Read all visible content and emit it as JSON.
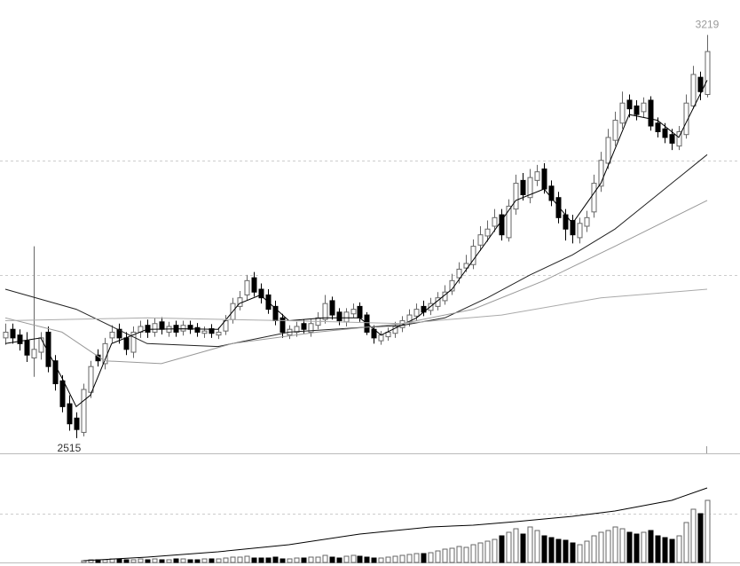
{
  "chart_data": {
    "type": "candlestick",
    "open": [
      2690,
      2705,
      2695,
      2685,
      2655,
      2665,
      2700,
      2650,
      2615,
      2575,
      2550,
      2525,
      2595,
      2660,
      2645,
      2690,
      2705,
      2690,
      2665,
      2700,
      2712,
      2700,
      2718,
      2700,
      2712,
      2702,
      2712,
      2708,
      2698,
      2706,
      2695,
      2702,
      2722,
      2745,
      2765,
      2795,
      2775,
      2765,
      2745,
      2725,
      2695,
      2700,
      2715,
      2700,
      2712,
      2722,
      2755,
      2735,
      2718,
      2732,
      2745,
      2730,
      2705,
      2685,
      2692,
      2698,
      2708,
      2718,
      2728,
      2745,
      2738,
      2745,
      2755,
      2772,
      2795,
      2812,
      2818,
      2852,
      2868,
      2885,
      2905,
      2865,
      2915,
      2965,
      2935,
      2965,
      2985,
      2955,
      2935,
      2905,
      2895,
      2865,
      2885,
      2910,
      2955,
      2995,
      3035,
      3065,
      3105,
      3095,
      3085,
      3105,
      3065,
      3055,
      3045,
      3025,
      3045,
      3095,
      3145,
      3115
    ],
    "high": [
      2715,
      2715,
      2705,
      2700,
      2850,
      2700,
      2710,
      2660,
      2625,
      2590,
      2560,
      2610,
      2650,
      2670,
      2690,
      2712,
      2715,
      2700,
      2710,
      2720,
      2722,
      2725,
      2726,
      2718,
      2720,
      2720,
      2720,
      2716,
      2710,
      2714,
      2708,
      2730,
      2760,
      2772,
      2800,
      2805,
      2785,
      2775,
      2755,
      2732,
      2712,
      2718,
      2722,
      2722,
      2735,
      2765,
      2762,
      2742,
      2742,
      2750,
      2752,
      2735,
      2712,
      2702,
      2708,
      2718,
      2728,
      2740,
      2750,
      2755,
      2760,
      2770,
      2782,
      2802,
      2822,
      2835,
      2862,
      2885,
      2895,
      2915,
      2915,
      2932,
      2975,
      2978,
      2985,
      2992,
      2995,
      2965,
      2945,
      2915,
      2905,
      2900,
      2912,
      2975,
      3015,
      3055,
      3085,
      3120,
      3115,
      3105,
      3110,
      3112,
      3075,
      3065,
      3055,
      3060,
      3115,
      3165,
      3155,
      3219
    ],
    "low": [
      2678,
      2680,
      2668,
      2648,
      2622,
      2652,
      2630,
      2598,
      2560,
      2528,
      2515,
      2518,
      2585,
      2640,
      2635,
      2680,
      2680,
      2660,
      2655,
      2690,
      2690,
      2692,
      2696,
      2692,
      2692,
      2694,
      2697,
      2692,
      2690,
      2690,
      2688,
      2695,
      2715,
      2738,
      2755,
      2762,
      2750,
      2732,
      2712,
      2690,
      2688,
      2692,
      2698,
      2692,
      2705,
      2715,
      2722,
      2712,
      2710,
      2725,
      2718,
      2695,
      2680,
      2678,
      2685,
      2690,
      2700,
      2710,
      2720,
      2728,
      2730,
      2738,
      2748,
      2765,
      2785,
      2805,
      2810,
      2842,
      2858,
      2875,
      2860,
      2858,
      2905,
      2930,
      2925,
      2955,
      2942,
      2920,
      2890,
      2860,
      2855,
      2855,
      2875,
      2900,
      2945,
      2985,
      3025,
      3055,
      3075,
      3070,
      3075,
      3052,
      3040,
      3030,
      3018,
      3018,
      3038,
      3090,
      3105,
      3110
    ],
    "close": [
      2700,
      2690,
      2680,
      2660,
      2670,
      2690,
      2640,
      2610,
      2570,
      2540,
      2530,
      2600,
      2640,
      2650,
      2680,
      2700,
      2690,
      2670,
      2700,
      2710,
      2700,
      2715,
      2705,
      2710,
      2700,
      2712,
      2705,
      2700,
      2702,
      2698,
      2700,
      2720,
      2750,
      2760,
      2790,
      2770,
      2760,
      2740,
      2720,
      2700,
      2705,
      2710,
      2705,
      2715,
      2725,
      2750,
      2730,
      2720,
      2735,
      2740,
      2725,
      2700,
      2690,
      2695,
      2700,
      2710,
      2720,
      2730,
      2740,
      2735,
      2750,
      2760,
      2770,
      2790,
      2810,
      2820,
      2850,
      2870,
      2880,
      2900,
      2870,
      2920,
      2960,
      2940,
      2970,
      2980,
      2950,
      2930,
      2900,
      2880,
      2870,
      2890,
      2900,
      2960,
      3000,
      3040,
      3070,
      3100,
      3090,
      3080,
      3100,
      3060,
      3050,
      3040,
      3030,
      3050,
      3100,
      3150,
      3120,
      3190
    ],
    "xlim": [
      0,
      99
    ],
    "ylim": [
      2490,
      3280
    ],
    "yticks": [
      2800,
      3000
    ],
    "grid": true,
    "up_color": "#ffffff",
    "down_color": "#000000",
    "wick_color": "#666666",
    "lines": [
      {
        "color": "#000000",
        "x": [
          0,
          5,
          8,
          10,
          12,
          15,
          20,
          25,
          30,
          33,
          36,
          40,
          45,
          50,
          53,
          58,
          63,
          68,
          72,
          76,
          80,
          84,
          88,
          92,
          95,
          99
        ],
        "values": [
          2680,
          2690,
          2620,
          2570,
          2590,
          2680,
          2705,
          2706,
          2705,
          2750,
          2765,
          2720,
          2725,
          2725,
          2695,
          2725,
          2775,
          2860,
          2930,
          2950,
          2890,
          2960,
          3080,
          3070,
          3040,
          3140
        ]
      },
      {
        "color": "#222222",
        "x": [
          0,
          10,
          20,
          30,
          40,
          50,
          56,
          62,
          68,
          74,
          80,
          86,
          92,
          99
        ],
        "values": [
          2775,
          2740,
          2680,
          2675,
          2700,
          2708,
          2712,
          2725,
          2760,
          2800,
          2835,
          2880,
          2940,
          3010
        ]
      },
      {
        "color": "#999999",
        "x": [
          0,
          8,
          14,
          22,
          32,
          44,
          56,
          66,
          76,
          86,
          99
        ],
        "values": [
          2725,
          2700,
          2650,
          2645,
          2680,
          2700,
          2715,
          2740,
          2790,
          2850,
          2930
        ]
      },
      {
        "color": "#aaaaaa",
        "x": [
          0,
          20,
          40,
          56,
          70,
          84,
          99
        ],
        "values": [
          2720,
          2725,
          2720,
          2715,
          2730,
          2760,
          2775
        ]
      }
    ],
    "volume": {
      "values": [
        null,
        null,
        null,
        null,
        null,
        null,
        null,
        null,
        null,
        null,
        null,
        2,
        3,
        3,
        3,
        4,
        4,
        3,
        3,
        4,
        3,
        4,
        3,
        3,
        4,
        4,
        3,
        3,
        4,
        4,
        4,
        5,
        6,
        6,
        7,
        5,
        5,
        5,
        6,
        4,
        4,
        5,
        5,
        6,
        6,
        8,
        6,
        5,
        7,
        8,
        7,
        6,
        5,
        5,
        6,
        7,
        8,
        9,
        10,
        10,
        11,
        13,
        15,
        16,
        18,
        17,
        20,
        22,
        24,
        26,
        30,
        34,
        38,
        32,
        40,
        36,
        30,
        28,
        26,
        25,
        22,
        20,
        24,
        30,
        34,
        36,
        40,
        38,
        34,
        32,
        34,
        36,
        30,
        28,
        26,
        30,
        45,
        60,
        55,
        70
      ],
      "ylim": [
        0,
        120
      ],
      "yticks": [
        55
      ],
      "lines": [
        {
          "color": "#000000",
          "x": [
            11,
            20,
            30,
            40,
            50,
            60,
            66,
            72,
            80,
            86,
            94,
            99
          ],
          "values": [
            2,
            6,
            12,
            20,
            32,
            40,
            42,
            46,
            52,
            58,
            70,
            84
          ]
        }
      ]
    }
  }
}
